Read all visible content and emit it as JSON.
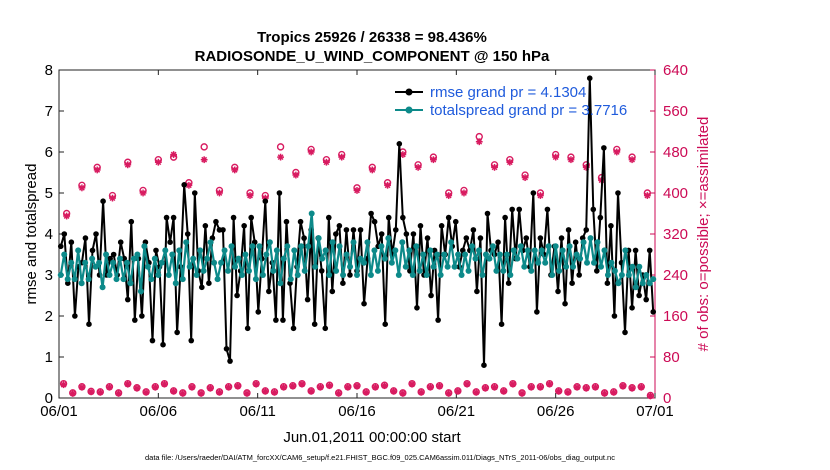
{
  "chart_data": {
    "type": "line",
    "title_line1": "Tropics 25926 / 26338 = 98.436%",
    "title_line2": "RADIOSONDE_U_WIND_COMPONENT @ 150 hPa",
    "xlabel": "Jun.01,2011 00:00:00 start",
    "ylabel_left": "rmse and totalspread",
    "ylabel_right": "# of obs: o=possible; ×=assimilated",
    "x_tick_labels": [
      "06/01",
      "06/06",
      "06/11",
      "06/16",
      "06/21",
      "06/26",
      "07/01"
    ],
    "y_left_ticks": [
      "0",
      "1",
      "2",
      "3",
      "4",
      "5",
      "6",
      "7",
      "8"
    ],
    "y_right_ticks": [
      "0",
      "80",
      "160",
      "240",
      "320",
      "400",
      "480",
      "560",
      "640"
    ],
    "xlim_days": [
      0,
      30
    ],
    "ylim_left": [
      0,
      8
    ],
    "ylim_right": [
      0,
      640
    ],
    "footnote": "data file: /Users/raeder/DAI/ATM_forcXX/CAM6_setup/f.e21.FHIST_BGC.f09_025.CAM6assim.011/Diags_NTrS_2011-06/obs_diag_output.nc",
    "colors": {
      "rmse": "#000000",
      "spread": "#0d8a8a",
      "obs": "#d81b60",
      "legend_text": "#1f5bdc",
      "right_axis": "#cc0a55"
    },
    "series": [
      {
        "name": "rmse grand pr = 4.1304",
        "values": [
          3.7,
          4.0,
          2.8,
          3.8,
          2.0,
          3.2,
          3.3,
          3.9,
          1.8,
          3.6,
          4.0,
          3.0,
          4.8,
          3.0,
          3.4,
          3.5,
          3.0,
          3.8,
          3.4,
          2.4,
          4.3,
          1.9,
          3.4,
          2.0,
          3.8,
          3.3,
          1.4,
          3.6,
          3.2,
          1.3,
          4.4,
          3.8,
          4.4,
          1.6,
          3.2,
          5.2,
          4.0,
          1.4,
          5.0,
          3.1,
          2.7,
          4.2,
          2.8,
          3.9,
          4.3,
          4.1,
          4.1,
          1.2,
          0.9,
          4.4,
          2.5,
          3.1,
          4.2,
          1.7,
          4.4,
          3.8,
          2.1,
          3.4,
          4.8,
          2.6,
          3.3,
          1.9,
          5.0,
          1.9,
          4.3,
          2.8,
          1.7,
          3.2,
          4.3,
          3.9,
          2.4,
          4.1,
          1.8,
          3.9,
          3.1,
          1.7,
          4.4,
          2.6,
          4.0,
          4.2,
          2.8,
          4.1,
          3.0,
          4.1,
          3.1,
          4.1,
          2.3,
          3.4,
          4.5,
          4.3,
          3.7,
          4.0,
          1.8,
          4.4,
          3.5,
          4.1,
          6.2,
          4.4,
          4.0,
          3.1,
          4.0,
          2.2,
          4.2,
          3.0,
          3.9,
          2.5,
          3.6,
          1.9,
          4.2,
          3.5,
          4.4,
          3.7,
          4.3,
          3.2,
          3.6,
          3.9,
          3.6,
          4.1,
          2.6,
          3.9,
          0.8,
          4.5,
          3.6,
          3.5,
          3.8,
          1.8,
          4.4,
          2.8,
          4.6,
          3.4,
          4.6,
          3.6,
          3.9,
          3.2,
          5.0,
          2.1,
          3.9,
          3.5,
          4.6,
          3.0,
          3.7,
          2.6,
          3.9,
          2.3,
          4.1,
          2.8,
          3.8,
          3.0,
          3.9,
          4.1,
          7.8,
          4.6,
          3.1,
          4.4,
          6.1,
          2.8,
          4.2,
          2.0,
          5.0,
          3.3,
          1.6,
          3.6,
          2.2,
          3.6,
          2.5,
          3.0,
          2.4,
          3.6,
          2.1
        ]
      },
      {
        "name": "totalspread grand pr = 3.7716",
        "values": [
          3.0,
          3.5,
          2.9,
          3.3,
          2.9,
          3.6,
          2.8,
          3.3,
          2.9,
          3.4,
          3.2,
          3.3,
          2.7,
          3.5,
          3.0,
          3.3,
          2.9,
          3.4,
          2.9,
          3.3,
          2.8,
          3.4,
          3.5,
          2.6,
          3.7,
          3.2,
          2.9,
          3.4,
          3.0,
          3.3,
          3.6,
          3.0,
          3.5,
          2.8,
          3.6,
          2.9,
          3.8,
          3.2,
          3.4,
          3.0,
          3.6,
          3.1,
          3.4,
          3.8,
          3.3,
          2.9,
          3.3,
          3.6,
          3.1,
          3.7,
          3.2,
          3.4,
          3.0,
          3.5,
          3.1,
          3.7,
          2.9,
          3.7,
          3.0,
          3.5,
          3.8,
          3.1,
          3.6,
          2.8,
          3.4,
          3.7,
          2.9,
          3.6,
          3.0,
          3.7,
          3.1,
          3.7,
          4.5,
          3.2,
          3.9,
          3.4,
          3.6,
          3.0,
          3.8,
          3.1,
          3.7,
          3.0,
          3.5,
          3.2,
          3.8,
          3.0,
          3.4,
          3.3,
          3.8,
          3.0,
          3.6,
          3.1,
          3.7,
          3.4,
          3.9,
          3.3,
          3.6,
          3.0,
          3.8,
          3.2,
          3.6,
          3.0,
          3.7,
          3.1,
          3.5,
          3.0,
          3.6,
          3.2,
          3.5,
          3.0,
          3.5,
          3.2,
          3.8,
          3.2,
          3.5,
          3.0,
          3.5,
          3.1,
          3.7,
          3.4,
          3.6,
          3.0,
          3.5,
          3.4,
          3.7,
          3.1,
          3.5,
          3.1,
          3.5,
          3.0,
          3.6,
          3.4,
          3.7,
          3.2,
          3.6,
          3.1,
          3.6,
          3.3,
          3.6,
          3.3,
          3.7,
          3.0,
          3.7,
          3.1,
          3.6,
          3.2,
          3.7,
          3.2,
          3.5,
          3.4,
          3.8,
          3.3,
          3.9,
          3.3,
          3.8,
          3.2,
          3.6,
          3.0,
          3.3,
          3.1,
          2.8,
          3.0,
          3.6,
          3.0,
          3.2,
          2.7,
          3.2,
          2.8,
          3.0,
          2.8,
          2.9
        ]
      }
    ],
    "obs_possible_high": [
      360,
      415,
      450,
      395,
      460,
      405,
      465,
      470,
      420,
      490,
      405,
      450,
      400,
      395,
      490,
      440,
      485,
      465,
      475,
      410,
      450,
      420,
      480,
      455,
      470,
      400,
      405,
      510,
      455,
      465,
      435,
      400,
      475,
      470,
      455,
      430,
      485,
      470,
      400
    ],
    "obs_assimilated_high": [
      355,
      410,
      445,
      390,
      455,
      400,
      460,
      475,
      415,
      465,
      400,
      445,
      395,
      390,
      470,
      435,
      480,
      460,
      470,
      405,
      445,
      415,
      475,
      450,
      465,
      395,
      400,
      500,
      450,
      460,
      430,
      395,
      470,
      465,
      450,
      425,
      480,
      465,
      395
    ],
    "obs_possible_low": [
      28,
      10,
      22,
      13,
      12,
      22,
      10,
      28,
      20,
      12,
      22,
      28,
      14,
      10,
      22,
      10,
      20,
      12,
      22,
      24,
      10,
      28,
      14,
      12,
      22,
      24,
      28,
      14,
      22,
      25,
      10,
      22,
      24,
      12,
      22,
      25,
      14,
      10,
      28,
      12,
      22,
      24,
      10,
      14,
      28,
      12,
      20,
      22,
      14,
      28,
      10,
      22,
      22,
      28,
      14,
      12,
      22,
      20,
      22,
      10,
      12,
      24,
      20,
      22,
      5
    ],
    "obs_assimilated_low": [
      26,
      9,
      21,
      12,
      11,
      21,
      9,
      27,
      19,
      11,
      21,
      27,
      13,
      9,
      21,
      9,
      19,
      11,
      21,
      23,
      9,
      27,
      13,
      11,
      21,
      23,
      27,
      13,
      21,
      24,
      9,
      21,
      23,
      11,
      21,
      24,
      13,
      9,
      27,
      11,
      21,
      23,
      9,
      13,
      27,
      11,
      19,
      21,
      13,
      27,
      9,
      21,
      21,
      27,
      13,
      11,
      21,
      19,
      21,
      9,
      11,
      23,
      19,
      21,
      4
    ]
  }
}
